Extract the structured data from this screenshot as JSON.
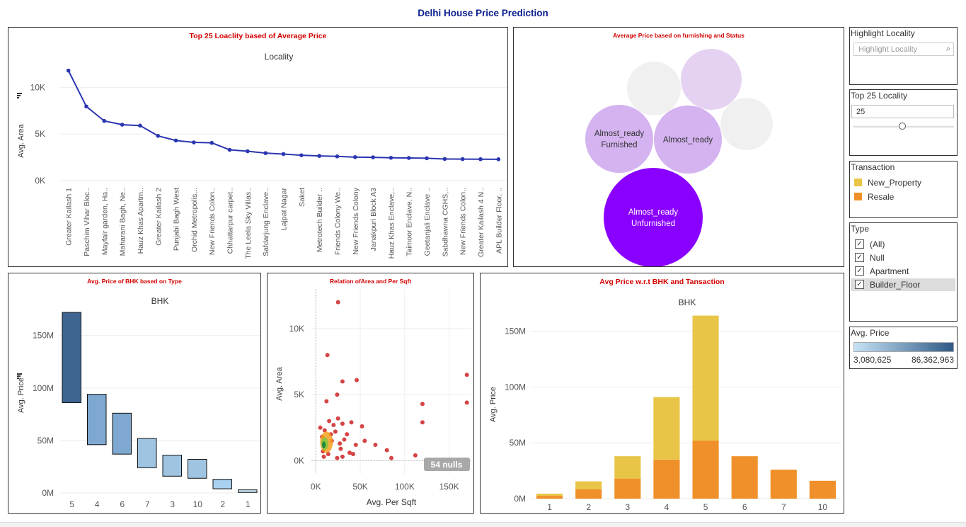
{
  "dashboard_title": "Delhi House Price Prediction",
  "panels": {
    "locality": {
      "title": "Top 25 Loaclity based of Average Price",
      "header": "Locality",
      "ylabel": "Avg. Area"
    },
    "furnishing": {
      "title": "Average Price based on furnishing and Status"
    },
    "bhk_type": {
      "title": "Avg. Price of BHK based on Type",
      "header": "BHK",
      "ylabel": "Avg. Price"
    },
    "scatter": {
      "title": "Relation ofArea and Per Sqft",
      "xlabel": "Avg. Per Sqft",
      "ylabel": "Avg. Area",
      "nulls": "54 nulls"
    },
    "bhk_trans": {
      "title": "Avg Price w.r.t BHK and Tansaction",
      "header": "BHK",
      "ylabel": "Avg. Price"
    }
  },
  "controls": {
    "highlight": {
      "title": "Highlight Locality",
      "placeholder": "Highlight Locality",
      "search_icon": "magnifier-icon"
    },
    "top_locality": {
      "title": "Top 25 Locality",
      "value": "25"
    },
    "transaction": {
      "title": "Transaction",
      "items": [
        {
          "label": "New_Property",
          "color": "#e8c547"
        },
        {
          "label": "Resale",
          "color": "#f0902a"
        }
      ]
    },
    "type": {
      "title": "Type",
      "items": [
        {
          "label": "(All)",
          "checked": true
        },
        {
          "label": "Null",
          "checked": true
        },
        {
          "label": "Apartment",
          "checked": true
        },
        {
          "label": "Builder_Floor",
          "checked": true
        }
      ]
    },
    "avg_price": {
      "title": "Avg. Price",
      "min": "3,080,625",
      "max": "86,362,963"
    }
  },
  "chart_data": [
    {
      "type": "line",
      "title": "Top 25 Loaclity based of Average Price",
      "header": "Locality",
      "ylabel": "Avg. Area",
      "yticks": [
        "10K",
        "5K",
        "0K"
      ],
      "ylim": [
        0,
        12000
      ],
      "grid": true,
      "categories": [
        "Greater Kailash 1",
        "Paschim Vihar Bloc..",
        "Mayfair garden, Ha..",
        "Maharani Bagh, Ne..",
        "Hauz Khas Apartm..",
        "Greater Kailash 2",
        "Punjabi Bagh West",
        "Orchid Metropolis,..",
        "New Friends Colon..",
        "Chhattarpur carpet..",
        "The Leela Sky Villas..",
        "Safdarjung Enclave..",
        "Lajpat Nagar",
        "Saket",
        "Metrotech Builder ..",
        "Friends Colony We..",
        "New Friends Colony",
        "Janakpuri Block A3",
        "Hauz Khas Enclave,..",
        "Taimoor Enclave, N..",
        "Geetanjali Enclave ..",
        "Sabdhawna CGHS,..",
        "New Friends Colon..",
        "Greater Kailash 4 N..",
        "APL Builder Floor, .."
      ],
      "values": [
        11800,
        7950,
        6400,
        6000,
        5900,
        4800,
        4300,
        4100,
        4050,
        3300,
        3150,
        2950,
        2850,
        2720,
        2650,
        2600,
        2520,
        2500,
        2450,
        2430,
        2400,
        2320,
        2310,
        2300,
        2290
      ],
      "color": "#2a35b0"
    },
    {
      "type": "bubble",
      "title": "Average Price based on furnishing and Status",
      "bubbles": [
        {
          "label": "",
          "color": "#f0f0f0"
        },
        {
          "label": "",
          "color": "#e5d2f2"
        },
        {
          "label": "",
          "color": "#f0f0f0"
        },
        {
          "label": "Almost_ready\nFurnished",
          "color": "#d4b3f0"
        },
        {
          "label": "Almost_ready",
          "color": "#d4b3f0"
        },
        {
          "label": "Almost_ready\nUnfurnished",
          "color": "#8a00ff"
        }
      ]
    },
    {
      "type": "gantt",
      "title": "Avg. Price of BHK based on Type",
      "header": "BHK",
      "ylabel": "Avg. Price",
      "yticks": [
        "150M",
        "100M",
        "50M",
        "0M"
      ],
      "ylim": [
        0,
        170000000
      ],
      "categories": [
        "5",
        "4",
        "6",
        "7",
        "3",
        "10",
        "2",
        "1"
      ],
      "ranges": [
        [
          86000000,
          172000000
        ],
        [
          46000000,
          94000000
        ],
        [
          37000000,
          76000000
        ],
        [
          24000000,
          52000000
        ],
        [
          16000000,
          36000000
        ],
        [
          14000000,
          32000000
        ],
        [
          4000000,
          13000000
        ],
        [
          500000,
          3000000
        ]
      ],
      "colors": [
        "#3d6590",
        "#7ea8cf",
        "#7ea8cf",
        "#9ec4e1",
        "#9ec4e1",
        "#9ec4e1",
        "#a9d0ee",
        "#c0deef"
      ]
    },
    {
      "type": "scatter",
      "title": "Relation ofArea and Per Sqft",
      "xlabel": "Avg. Per Sqft",
      "ylabel": "Avg. Area",
      "xticks": [
        "0K",
        "50K",
        "100K",
        "150K"
      ],
      "yticks": [
        "10K",
        "5K",
        "0K"
      ],
      "xlim": [
        -5000,
        175000
      ],
      "ylim": [
        -1000,
        13000
      ],
      "nulls": "54 nulls",
      "points": [
        [
          25000,
          12000
        ],
        [
          13000,
          8000
        ],
        [
          30000,
          6000
        ],
        [
          46000,
          6100
        ],
        [
          24000,
          5000
        ],
        [
          12000,
          4500
        ],
        [
          170000,
          6500
        ],
        [
          170000,
          4400
        ],
        [
          120000,
          4300
        ],
        [
          120000,
          2900
        ],
        [
          40000,
          2900
        ],
        [
          52000,
          2600
        ],
        [
          30000,
          2800
        ],
        [
          55000,
          1500
        ],
        [
          67000,
          1200
        ],
        [
          80000,
          800
        ],
        [
          85000,
          200
        ],
        [
          112000,
          400
        ],
        [
          5000,
          2500
        ],
        [
          10000,
          2300
        ],
        [
          15000,
          3000
        ],
        [
          20000,
          2700
        ],
        [
          25000,
          3200
        ],
        [
          35000,
          2000
        ],
        [
          45000,
          1200
        ],
        [
          18000,
          1500
        ],
        [
          28000,
          900
        ],
        [
          38000,
          600
        ],
        [
          8000,
          700
        ],
        [
          12000,
          1200
        ],
        [
          22000,
          2200
        ],
        [
          32000,
          1600
        ],
        [
          42000,
          500
        ],
        [
          7000,
          1800
        ],
        [
          17000,
          2000
        ],
        [
          27000,
          1300
        ],
        [
          14000,
          500
        ],
        [
          24000,
          200
        ],
        [
          9000,
          300
        ],
        [
          30000,
          300
        ]
      ],
      "color": "#d03030"
    },
    {
      "type": "bar",
      "stacked": true,
      "title": "Avg Price w.r.t BHK and Tansaction",
      "header": "BHK",
      "ylabel": "Avg. Price",
      "yticks": [
        "150M",
        "100M",
        "50M",
        "0M"
      ],
      "ylim": [
        0,
        165000000
      ],
      "categories": [
        "1",
        "2",
        "3",
        "4",
        "5",
        "6",
        "7",
        "10"
      ],
      "series": [
        {
          "name": "Resale",
          "color": "#f0902a",
          "values": [
            2500000,
            8500000,
            18000000,
            35000000,
            52000000,
            38000000,
            26000000,
            16000000
          ]
        },
        {
          "name": "New_Property",
          "color": "#e8c547",
          "values": [
            2000000,
            7000000,
            20000000,
            56000000,
            112000000,
            0,
            0,
            0
          ]
        }
      ]
    }
  ]
}
